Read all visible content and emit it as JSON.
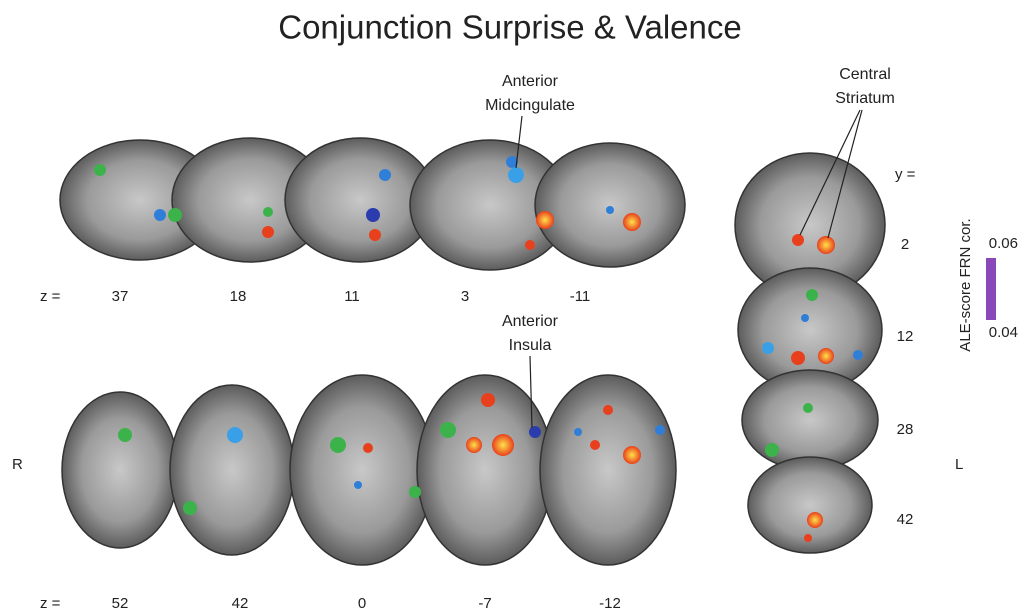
{
  "title": "Conjunction Surprise & Valence",
  "annotations": [
    {
      "lines": [
        "Anterior",
        "Midcingulate"
      ]
    },
    {
      "lines": [
        "Central",
        "Striatum"
      ]
    },
    {
      "lines": [
        "Anterior",
        "Insula"
      ]
    }
  ],
  "sagittal": {
    "axis_label": "z =",
    "slices": [
      "37",
      "18",
      "11",
      "3",
      "-11"
    ]
  },
  "axial": {
    "axis_label": "z =",
    "slices": [
      "52",
      "42",
      "0",
      "-7",
      "-12"
    ]
  },
  "coronal": {
    "axis_label": "y =",
    "slices": [
      "2",
      "12",
      "28",
      "42"
    ]
  },
  "orientation": {
    "right": "R",
    "left": "L"
  },
  "colorbar": {
    "label": "ALE-score FRN cor.",
    "max": "0.06",
    "min": "0.04"
  }
}
